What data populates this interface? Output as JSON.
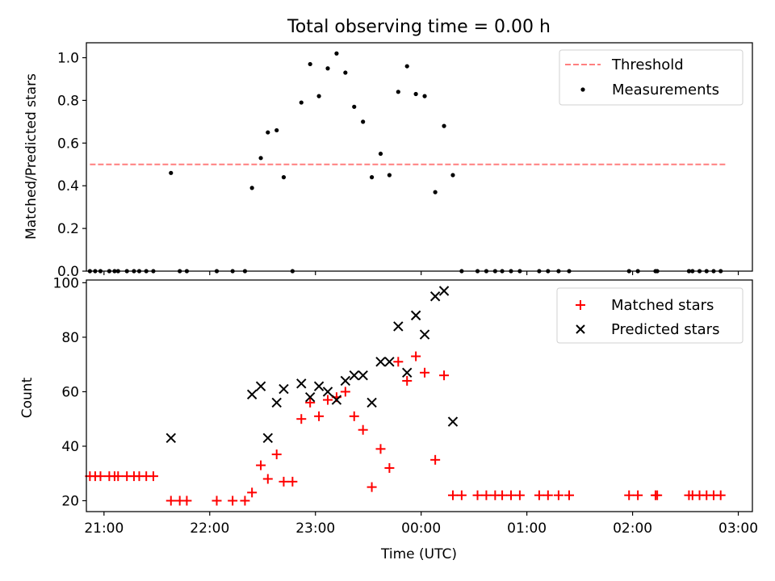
{
  "figure": {
    "title": "Total observing time = 0.00 h",
    "colors": {
      "threshold": "#ff7f7f",
      "measurement": "#000000",
      "matched": "#ff0000",
      "predicted": "#000000"
    }
  },
  "chart_data": [
    {
      "type": "scatter",
      "title": "Total observing time = 0.00 h",
      "xlabel": "",
      "ylabel": "Matched/Predicted stars",
      "xlim": [
        "20:50",
        "03:08"
      ],
      "ylim": [
        0,
        1.07
      ],
      "yticks": [
        "0.0",
        "0.2",
        "0.4",
        "0.6",
        "0.8",
        "1.0"
      ],
      "legend_position": "top-right",
      "threshold": {
        "name": "Threshold",
        "value": 0.5,
        "x_range": [
          "20:52",
          "02:53"
        ],
        "style": "dashed"
      },
      "series": [
        {
          "name": "Measurements",
          "points": [
            [
              "20:52",
              0
            ],
            [
              "20:55",
              0
            ],
            [
              "20:58",
              0
            ],
            [
              "21:03",
              0
            ],
            [
              "21:06",
              0
            ],
            [
              "21:08",
              0
            ],
            [
              "21:13",
              0
            ],
            [
              "21:17",
              0
            ],
            [
              "21:20",
              0
            ],
            [
              "21:24",
              0
            ],
            [
              "21:28",
              0
            ],
            [
              "21:38",
              0.46
            ],
            [
              "21:43",
              0
            ],
            [
              "21:47",
              0
            ],
            [
              "22:04",
              0
            ],
            [
              "22:13",
              0
            ],
            [
              "22:20",
              0
            ],
            [
              "22:24",
              0.39
            ],
            [
              "22:29",
              0.53
            ],
            [
              "22:33",
              0.65
            ],
            [
              "22:38",
              0.66
            ],
            [
              "22:42",
              0.44
            ],
            [
              "22:47",
              0
            ],
            [
              "22:52",
              0.79
            ],
            [
              "22:57",
              0.97
            ],
            [
              "23:02",
              0.82
            ],
            [
              "23:07",
              0.95
            ],
            [
              "23:12",
              1.02
            ],
            [
              "23:17",
              0.93
            ],
            [
              "23:22",
              0.77
            ],
            [
              "23:27",
              0.7
            ],
            [
              "23:32",
              0.44
            ],
            [
              "23:37",
              0.55
            ],
            [
              "23:42",
              0.45
            ],
            [
              "23:47",
              0.84
            ],
            [
              "23:52",
              0.96
            ],
            [
              "23:57",
              0.83
            ],
            [
              "00:02",
              0.82
            ],
            [
              "00:08",
              0.37
            ],
            [
              "00:13",
              0.68
            ],
            [
              "00:18",
              0.45
            ],
            [
              "00:23",
              0
            ],
            [
              "00:32",
              0
            ],
            [
              "00:37",
              0
            ],
            [
              "00:42",
              0
            ],
            [
              "00:46",
              0
            ],
            [
              "00:51",
              0
            ],
            [
              "00:56",
              0
            ],
            [
              "01:07",
              0
            ],
            [
              "01:12",
              0
            ],
            [
              "01:18",
              0
            ],
            [
              "01:24",
              0
            ],
            [
              "01:58",
              0
            ],
            [
              "02:03",
              0
            ],
            [
              "02:13",
              0
            ],
            [
              "02:14",
              0
            ],
            [
              "02:32",
              0
            ],
            [
              "02:34",
              0
            ],
            [
              "02:38",
              0
            ],
            [
              "02:42",
              0
            ],
            [
              "02:46",
              0
            ],
            [
              "02:50",
              0
            ]
          ]
        }
      ]
    },
    {
      "type": "scatter",
      "title": "",
      "xlabel": "Time (UTC)",
      "ylabel": "Count",
      "xlim": [
        "20:50",
        "03:08"
      ],
      "ylim": [
        16,
        101
      ],
      "yticks": [
        "20",
        "40",
        "60",
        "80",
        "100"
      ],
      "xticks": [
        "21:00",
        "22:00",
        "23:00",
        "00:00",
        "01:00",
        "02:00",
        "03:00"
      ],
      "legend_position": "top-right",
      "series": [
        {
          "name": "Matched stars",
          "marker": "+",
          "points": [
            [
              "20:52",
              29
            ],
            [
              "20:55",
              29
            ],
            [
              "20:58",
              29
            ],
            [
              "21:03",
              29
            ],
            [
              "21:06",
              29
            ],
            [
              "21:08",
              29
            ],
            [
              "21:13",
              29
            ],
            [
              "21:17",
              29
            ],
            [
              "21:20",
              29
            ],
            [
              "21:24",
              29
            ],
            [
              "21:28",
              29
            ],
            [
              "21:38",
              20
            ],
            [
              "21:43",
              20
            ],
            [
              "21:47",
              20
            ],
            [
              "22:04",
              20
            ],
            [
              "22:13",
              20
            ],
            [
              "22:20",
              20
            ],
            [
              "22:24",
              23
            ],
            [
              "22:29",
              33
            ],
            [
              "22:33",
              28
            ],
            [
              "22:38",
              37
            ],
            [
              "22:42",
              27
            ],
            [
              "22:47",
              27
            ],
            [
              "22:52",
              50
            ],
            [
              "22:57",
              56
            ],
            [
              "23:02",
              51
            ],
            [
              "23:07",
              57
            ],
            [
              "23:12",
              58
            ],
            [
              "23:17",
              60
            ],
            [
              "23:22",
              51
            ],
            [
              "23:27",
              46
            ],
            [
              "23:32",
              25
            ],
            [
              "23:37",
              39
            ],
            [
              "23:42",
              32
            ],
            [
              "23:47",
              71
            ],
            [
              "23:52",
              64
            ],
            [
              "23:57",
              73
            ],
            [
              "00:02",
              67
            ],
            [
              "00:08",
              35
            ],
            [
              "00:13",
              66
            ],
            [
              "00:18",
              22
            ],
            [
              "00:23",
              22
            ],
            [
              "00:32",
              22
            ],
            [
              "00:37",
              22
            ],
            [
              "00:42",
              22
            ],
            [
              "00:46",
              22
            ],
            [
              "00:51",
              22
            ],
            [
              "00:56",
              22
            ],
            [
              "01:07",
              22
            ],
            [
              "01:12",
              22
            ],
            [
              "01:18",
              22
            ],
            [
              "01:24",
              22
            ],
            [
              "01:58",
              22
            ],
            [
              "02:03",
              22
            ],
            [
              "02:13",
              22
            ],
            [
              "02:14",
              22
            ],
            [
              "02:32",
              22
            ],
            [
              "02:34",
              22
            ],
            [
              "02:38",
              22
            ],
            [
              "02:42",
              22
            ],
            [
              "02:46",
              22
            ],
            [
              "02:50",
              22
            ]
          ]
        },
        {
          "name": "Predicted stars",
          "marker": "x",
          "points": [
            [
              "21:38",
              43
            ],
            [
              "22:24",
              59
            ],
            [
              "22:29",
              62
            ],
            [
              "22:33",
              43
            ],
            [
              "22:38",
              56
            ],
            [
              "22:42",
              61
            ],
            [
              "22:52",
              63
            ],
            [
              "22:57",
              58
            ],
            [
              "23:02",
              62
            ],
            [
              "23:07",
              60
            ],
            [
              "23:12",
              57
            ],
            [
              "23:17",
              64
            ],
            [
              "23:22",
              66
            ],
            [
              "23:27",
              66
            ],
            [
              "23:32",
              56
            ],
            [
              "23:37",
              71
            ],
            [
              "23:42",
              71
            ],
            [
              "23:47",
              84
            ],
            [
              "23:52",
              67
            ],
            [
              "23:57",
              88
            ],
            [
              "00:02",
              81
            ],
            [
              "00:08",
              95
            ],
            [
              "00:13",
              97
            ],
            [
              "00:18",
              49
            ]
          ]
        }
      ]
    }
  ]
}
